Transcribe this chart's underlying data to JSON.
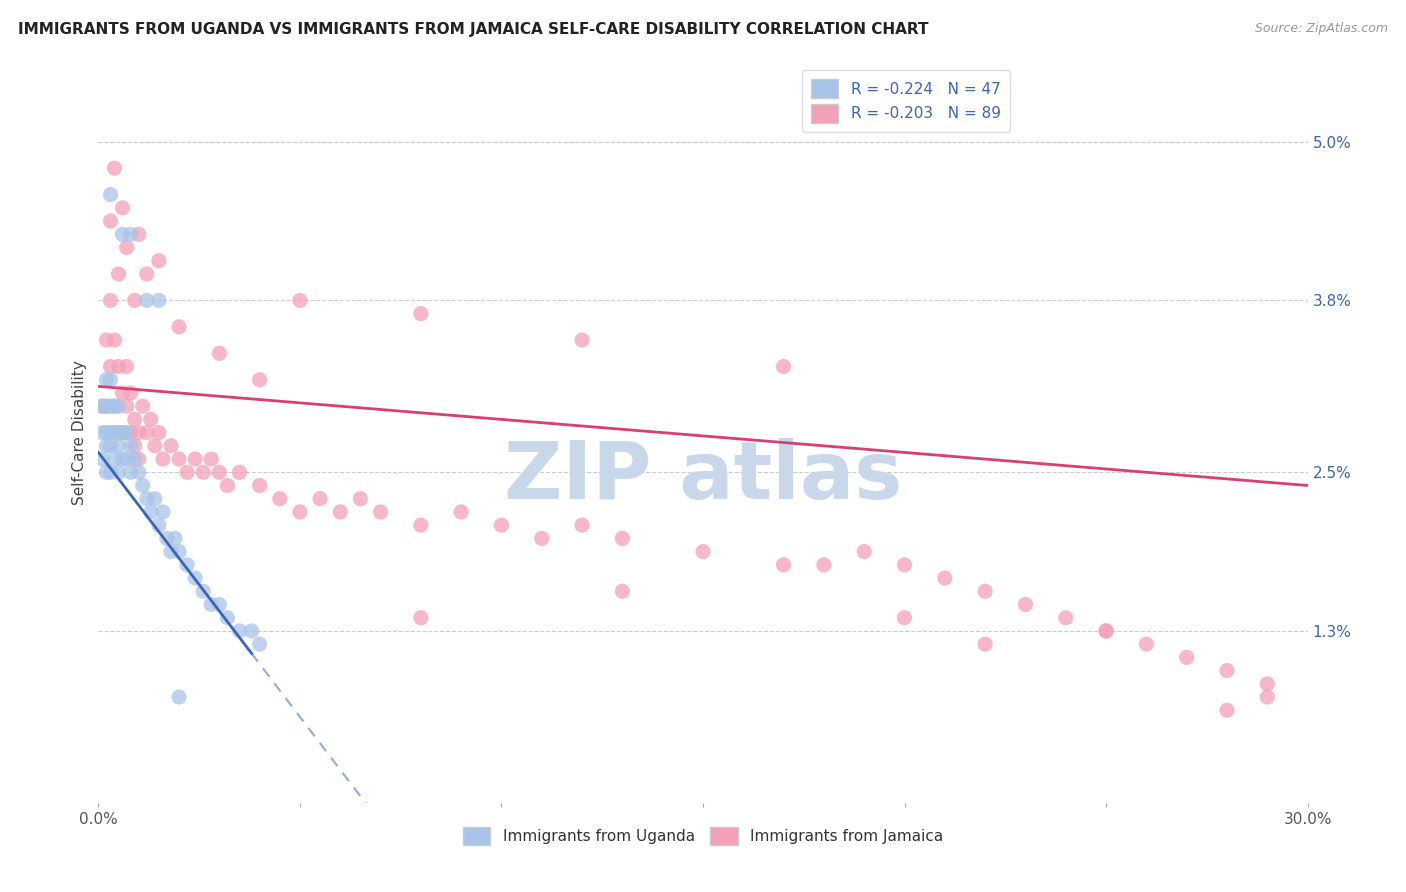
{
  "title": "IMMIGRANTS FROM UGANDA VS IMMIGRANTS FROM JAMAICA SELF-CARE DISABILITY CORRELATION CHART",
  "source": "Source: ZipAtlas.com",
  "ylabel": "Self-Care Disability",
  "right_yticks": [
    "5.0%",
    "3.8%",
    "2.5%",
    "1.3%"
  ],
  "right_ytick_vals": [
    0.05,
    0.038,
    0.025,
    0.013
  ],
  "R_uganda": -0.224,
  "N_uganda": 47,
  "R_jamaica": -0.203,
  "N_jamaica": 89,
  "color_uganda": "#a8c4e8",
  "color_jamaica": "#f4a0b8",
  "color_line_uganda": "#3a65b5",
  "color_line_jamaica": "#d84070",
  "color_text_blue": "#3a65b5",
  "watermark_color": "#c8d8ea",
  "background_color": "#ffffff",
  "xmin": 0.0,
  "xmax": 0.3,
  "ymin": 0.0,
  "ymax": 0.056,
  "uganda_x": [
    0.001,
    0.001,
    0.001,
    0.002,
    0.002,
    0.002,
    0.002,
    0.002,
    0.003,
    0.003,
    0.003,
    0.003,
    0.003,
    0.004,
    0.004,
    0.004,
    0.005,
    0.005,
    0.005,
    0.005,
    0.006,
    0.006,
    0.007,
    0.007,
    0.008,
    0.008,
    0.009,
    0.01,
    0.011,
    0.012,
    0.013,
    0.014,
    0.015,
    0.016,
    0.017,
    0.018,
    0.019,
    0.02,
    0.022,
    0.024,
    0.026,
    0.028,
    0.03,
    0.032,
    0.035,
    0.038,
    0.04
  ],
  "uganda_y": [
    0.03,
    0.028,
    0.026,
    0.032,
    0.03,
    0.028,
    0.027,
    0.025,
    0.032,
    0.03,
    0.028,
    0.027,
    0.025,
    0.03,
    0.028,
    0.026,
    0.03,
    0.028,
    0.027,
    0.025,
    0.028,
    0.026,
    0.028,
    0.026,
    0.027,
    0.025,
    0.026,
    0.025,
    0.024,
    0.023,
    0.022,
    0.023,
    0.021,
    0.022,
    0.02,
    0.019,
    0.02,
    0.019,
    0.018,
    0.017,
    0.016,
    0.015,
    0.015,
    0.014,
    0.013,
    0.013,
    0.012
  ],
  "uganda_outliers_x": [
    0.003,
    0.006,
    0.008,
    0.012,
    0.015,
    0.02
  ],
  "uganda_outliers_y": [
    0.046,
    0.043,
    0.043,
    0.038,
    0.038,
    0.008
  ],
  "jamaica_x": [
    0.001,
    0.002,
    0.002,
    0.003,
    0.003,
    0.004,
    0.004,
    0.005,
    0.005,
    0.006,
    0.006,
    0.007,
    0.007,
    0.008,
    0.008,
    0.009,
    0.009,
    0.01,
    0.01,
    0.011,
    0.012,
    0.013,
    0.014,
    0.015,
    0.016,
    0.018,
    0.02,
    0.022,
    0.024,
    0.026,
    0.028,
    0.03,
    0.032,
    0.035,
    0.04,
    0.045,
    0.05,
    0.055,
    0.06,
    0.065,
    0.07,
    0.08,
    0.09,
    0.1,
    0.11,
    0.12,
    0.13,
    0.15,
    0.17,
    0.19,
    0.2,
    0.21,
    0.22,
    0.23,
    0.24,
    0.25,
    0.26,
    0.27,
    0.28,
    0.29
  ],
  "jamaica_y": [
    0.03,
    0.035,
    0.03,
    0.038,
    0.033,
    0.035,
    0.03,
    0.033,
    0.028,
    0.031,
    0.028,
    0.033,
    0.03,
    0.031,
    0.028,
    0.029,
    0.027,
    0.028,
    0.026,
    0.03,
    0.028,
    0.029,
    0.027,
    0.028,
    0.026,
    0.027,
    0.026,
    0.025,
    0.026,
    0.025,
    0.026,
    0.025,
    0.024,
    0.025,
    0.024,
    0.023,
    0.022,
    0.023,
    0.022,
    0.023,
    0.022,
    0.021,
    0.022,
    0.021,
    0.02,
    0.021,
    0.02,
    0.019,
    0.018,
    0.019,
    0.018,
    0.017,
    0.016,
    0.015,
    0.014,
    0.013,
    0.012,
    0.011,
    0.01,
    0.009
  ],
  "jamaica_outliers_x": [
    0.003,
    0.005,
    0.007,
    0.009,
    0.012,
    0.02,
    0.03,
    0.04,
    0.004,
    0.006,
    0.01,
    0.015,
    0.05,
    0.08,
    0.12,
    0.17,
    0.08,
    0.13,
    0.2,
    0.28,
    0.25,
    0.29,
    0.18,
    0.22
  ],
  "jamaica_outliers_y": [
    0.044,
    0.04,
    0.042,
    0.038,
    0.04,
    0.036,
    0.034,
    0.032,
    0.048,
    0.045,
    0.043,
    0.041,
    0.038,
    0.037,
    0.035,
    0.033,
    0.014,
    0.016,
    0.014,
    0.007,
    0.013,
    0.008,
    0.018,
    0.012
  ]
}
